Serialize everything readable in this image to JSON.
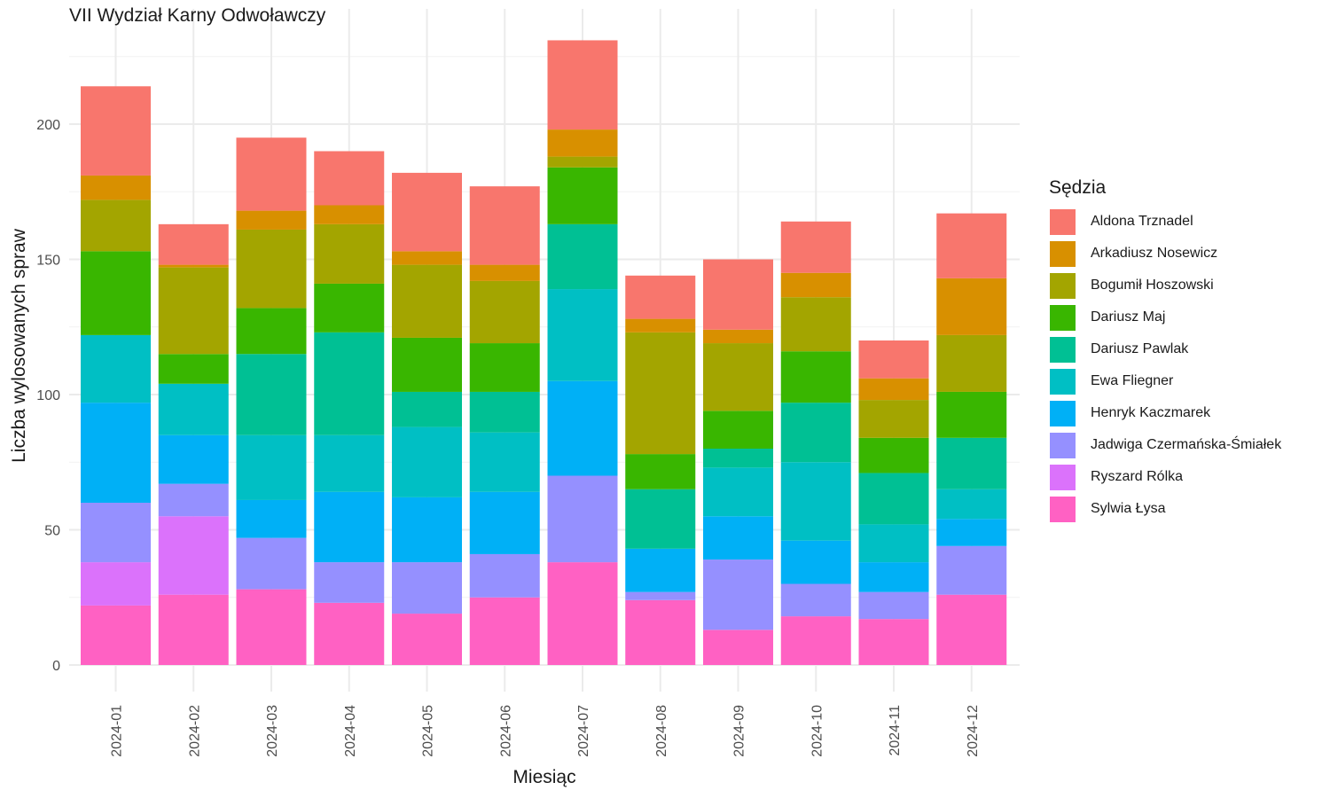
{
  "chart_data": {
    "type": "bar",
    "stacked": true,
    "title": "VII Wydział Karny Odwoławczy",
    "xlabel": "Miesiąc",
    "ylabel": "Liczba wylosowanych spraw",
    "ylim": [
      0,
      240
    ],
    "yticks": [
      0,
      50,
      100,
      150,
      200
    ],
    "grid": true,
    "legend_title": "Sędzia",
    "legend_position": "right",
    "categories": [
      "2024-01",
      "2024-02",
      "2024-03",
      "2024-04",
      "2024-05",
      "2024-06",
      "2024-07",
      "2024-08",
      "2024-09",
      "2024-10",
      "2024-11",
      "2024-12"
    ],
    "series": [
      {
        "name": "Sylwia Łysa",
        "color": "#FF61C3",
        "values": [
          22,
          26,
          28,
          23,
          19,
          25,
          38,
          24,
          13,
          18,
          17,
          26
        ]
      },
      {
        "name": "Ryszard Rólka",
        "color": "#DB72FB",
        "values": [
          16,
          29,
          0,
          0,
          0,
          0,
          0,
          0,
          0,
          0,
          0,
          0
        ]
      },
      {
        "name": "Jadwiga Czermańska-Śmiałek",
        "color": "#9590FF",
        "values": [
          22,
          12,
          19,
          15,
          19,
          16,
          32,
          3,
          26,
          12,
          10,
          18
        ]
      },
      {
        "name": "Henryk Kaczmarek",
        "color": "#00B0F6",
        "values": [
          37,
          18,
          14,
          26,
          24,
          23,
          35,
          16,
          16,
          16,
          11,
          10
        ]
      },
      {
        "name": "Ewa Fliegner",
        "color": "#00BFC4",
        "values": [
          25,
          19,
          24,
          21,
          26,
          22,
          34,
          0,
          18,
          29,
          14,
          11
        ]
      },
      {
        "name": "Dariusz Pawlak",
        "color": "#00C094",
        "values": [
          0,
          0,
          30,
          38,
          13,
          15,
          24,
          22,
          7,
          22,
          19,
          19
        ]
      },
      {
        "name": "Dariusz Maj",
        "color": "#39B600",
        "values": [
          31,
          11,
          17,
          18,
          20,
          18,
          21,
          13,
          14,
          19,
          13,
          17
        ]
      },
      {
        "name": "Bogumił Hoszowski",
        "color": "#A3A500",
        "values": [
          19,
          32,
          29,
          22,
          27,
          23,
          4,
          45,
          25,
          20,
          14,
          21
        ]
      },
      {
        "name": "Arkadiusz Nosewicz",
        "color": "#D89000",
        "values": [
          9,
          1,
          7,
          7,
          5,
          6,
          10,
          5,
          5,
          9,
          8,
          21
        ]
      },
      {
        "name": "Aldona Trznadel",
        "color": "#F8766D",
        "values": [
          33,
          15,
          27,
          20,
          29,
          29,
          33,
          16,
          26,
          19,
          14,
          24
        ]
      }
    ]
  }
}
